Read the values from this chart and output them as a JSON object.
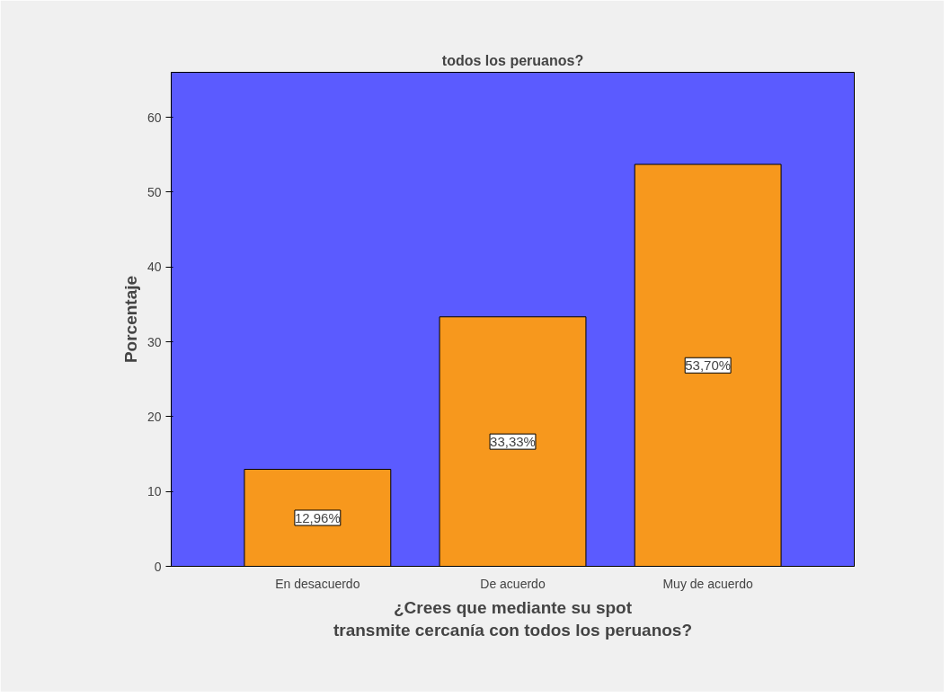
{
  "chart_data": {
    "type": "bar",
    "title": "todos los peruanos?",
    "xlabel": "¿Crees que mediante su spot\ntransmite cercanía con todos los peruanos?",
    "ylabel": "Porcentaje",
    "categories": [
      "En desacuerdo",
      "De acuerdo",
      "Muy de acuerdo"
    ],
    "values": [
      12.96,
      33.33,
      53.7
    ],
    "value_labels": [
      "12,96%",
      "33,33%",
      "53,70%"
    ],
    "color": "#f7981d",
    "ylim": [
      0,
      66
    ],
    "yticks": [
      0,
      10,
      20,
      30,
      40,
      50,
      60
    ],
    "grid": false
  }
}
